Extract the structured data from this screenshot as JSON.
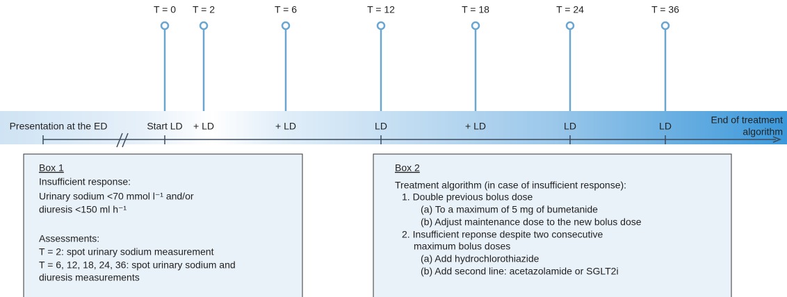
{
  "timepoints": [
    "T = 0",
    "T = 2",
    "T = 6",
    "T = 12",
    "T = 18",
    "T = 24",
    "T = 36"
  ],
  "band_labels": [
    "Presentation at the ED",
    "Start LD",
    "+ LD",
    "+ LD",
    "LD",
    "+ LD",
    "LD",
    "LD"
  ],
  "end_label": [
    "End of treatment",
    "algorithm"
  ],
  "box1": {
    "title": "Box 1",
    "lines": [
      "Insufficient response:",
      "Urinary sodium <70 mmol l⁻¹ and/or",
      "diuresis <150 ml h⁻¹",
      "Assessments:",
      "T = 2: spot urinary sodium measurement",
      "T = 6, 12, 18, 24, 36: spot urinary sodium and",
      "diuresis measurements"
    ]
  },
  "box2": {
    "title": "Box 2",
    "lines": [
      "Treatment algorithm (in case of insufficient response):",
      "1. Double previous bolus dose",
      "(a) To a maximum of 5 mg of bumetanide",
      "(b) Adjust maintenance dose to the new bolus dose",
      "2. Insufficient reponse despite two consecutive",
      "maximum bolus doses",
      "(a) Add hydrochlorothiazide",
      "(b) Add second line: acetazolamide or SGLT2i"
    ]
  }
}
